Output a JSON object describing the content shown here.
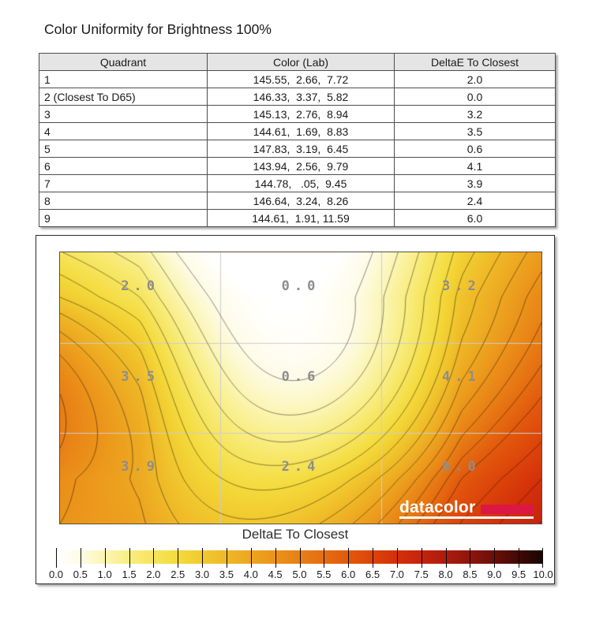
{
  "page": {
    "title": "Color Uniformity for Brightness 100%"
  },
  "table": {
    "columns": [
      "Quadrant",
      "Color (Lab)",
      "DeltaE To Closest"
    ],
    "rows": [
      {
        "quadrant": "1",
        "lab": "145.55,  2.66,  7.72",
        "deltae": "2.0"
      },
      {
        "quadrant": "2 (Closest To D65)",
        "lab": "146.33,  3.37,  5.82",
        "deltae": "0.0"
      },
      {
        "quadrant": "3",
        "lab": "145.13,  2.76,  8.94",
        "deltae": "3.2"
      },
      {
        "quadrant": "4",
        "lab": "144.61,  1.69,  8.83",
        "deltae": "3.5"
      },
      {
        "quadrant": "5",
        "lab": "147.83,  3.19,  6.45",
        "deltae": "0.6"
      },
      {
        "quadrant": "6",
        "lab": "143.94,  2.56,  9.79",
        "deltae": "4.1"
      },
      {
        "quadrant": "7",
        "lab": "144.78,   .05,  9.45",
        "deltae": "3.9"
      },
      {
        "quadrant": "8",
        "lab": "146.64,  3.24,  8.26",
        "deltae": "2.4"
      },
      {
        "quadrant": "9",
        "lab": "144.61,  1.91, 11.59",
        "deltae": "6.0"
      }
    ]
  },
  "figure": {
    "plot_title": "DeltaE To Closest",
    "logo_text": "datacolor",
    "logo_accent_color": "#DB1843"
  },
  "chart_data": {
    "type": "heatmap",
    "subtype": "contour-uniformity-map",
    "title": "DeltaE To Closest",
    "grid_rows": 3,
    "grid_cols": 3,
    "values": [
      [
        2.0,
        0.0,
        3.2
      ],
      [
        3.5,
        0.6,
        4.1
      ],
      [
        3.9,
        2.4,
        6.0
      ]
    ],
    "cell_labels": [
      [
        "2.0",
        "0.0",
        "3.2"
      ],
      [
        "3.5",
        "0.6",
        "4.1"
      ],
      [
        "3.9",
        "2.4",
        "6.0"
      ]
    ],
    "zlim": [
      0,
      10
    ],
    "contour_interval": 0.5,
    "grid_on": true,
    "gridline_color": "#cdcdcd",
    "label_color": "#8d8d8d",
    "colorbar_ticks": [
      "0.0",
      "0.5",
      "1.0",
      "1.5",
      "2.0",
      "2.5",
      "3.0",
      "3.5",
      "4.0",
      "4.5",
      "5.0",
      "5.5",
      "6.0",
      "6.5",
      "7.0",
      "7.5",
      "8.0",
      "8.5",
      "9.0",
      "9.5",
      "10.0"
    ],
    "colormap_stops": [
      [
        0.0,
        [
          255,
          255,
          255
        ]
      ],
      [
        0.5,
        [
          254,
          251,
          229
        ]
      ],
      [
        1.0,
        [
          251,
          245,
          178
        ]
      ],
      [
        1.5,
        [
          249,
          237,
          130
        ]
      ],
      [
        2.0,
        [
          246,
          228,
          91
        ]
      ],
      [
        2.5,
        [
          244,
          218,
          60
        ]
      ],
      [
        3.0,
        [
          241,
          202,
          47
        ]
      ],
      [
        3.5,
        [
          239,
          184,
          39
        ]
      ],
      [
        4.0,
        [
          237,
          166,
          32
        ]
      ],
      [
        4.5,
        [
          235,
          147,
          26
        ]
      ],
      [
        5.0,
        [
          232,
          128,
          21
        ]
      ],
      [
        5.5,
        [
          229,
          109,
          17
        ]
      ],
      [
        6.0,
        [
          226,
          90,
          13
        ]
      ],
      [
        6.5,
        [
          220,
          68,
          10
        ]
      ],
      [
        7.0,
        [
          212,
          48,
          10
        ]
      ],
      [
        7.5,
        [
          197,
          37,
          13
        ]
      ],
      [
        8.0,
        [
          173,
          28,
          14
        ]
      ],
      [
        8.5,
        [
          144,
          21,
          12
        ]
      ],
      [
        9.0,
        [
          108,
          15,
          8
        ]
      ],
      [
        9.5,
        [
          66,
          10,
          5
        ]
      ],
      [
        10.0,
        [
          24,
          4,
          2
        ]
      ]
    ]
  }
}
